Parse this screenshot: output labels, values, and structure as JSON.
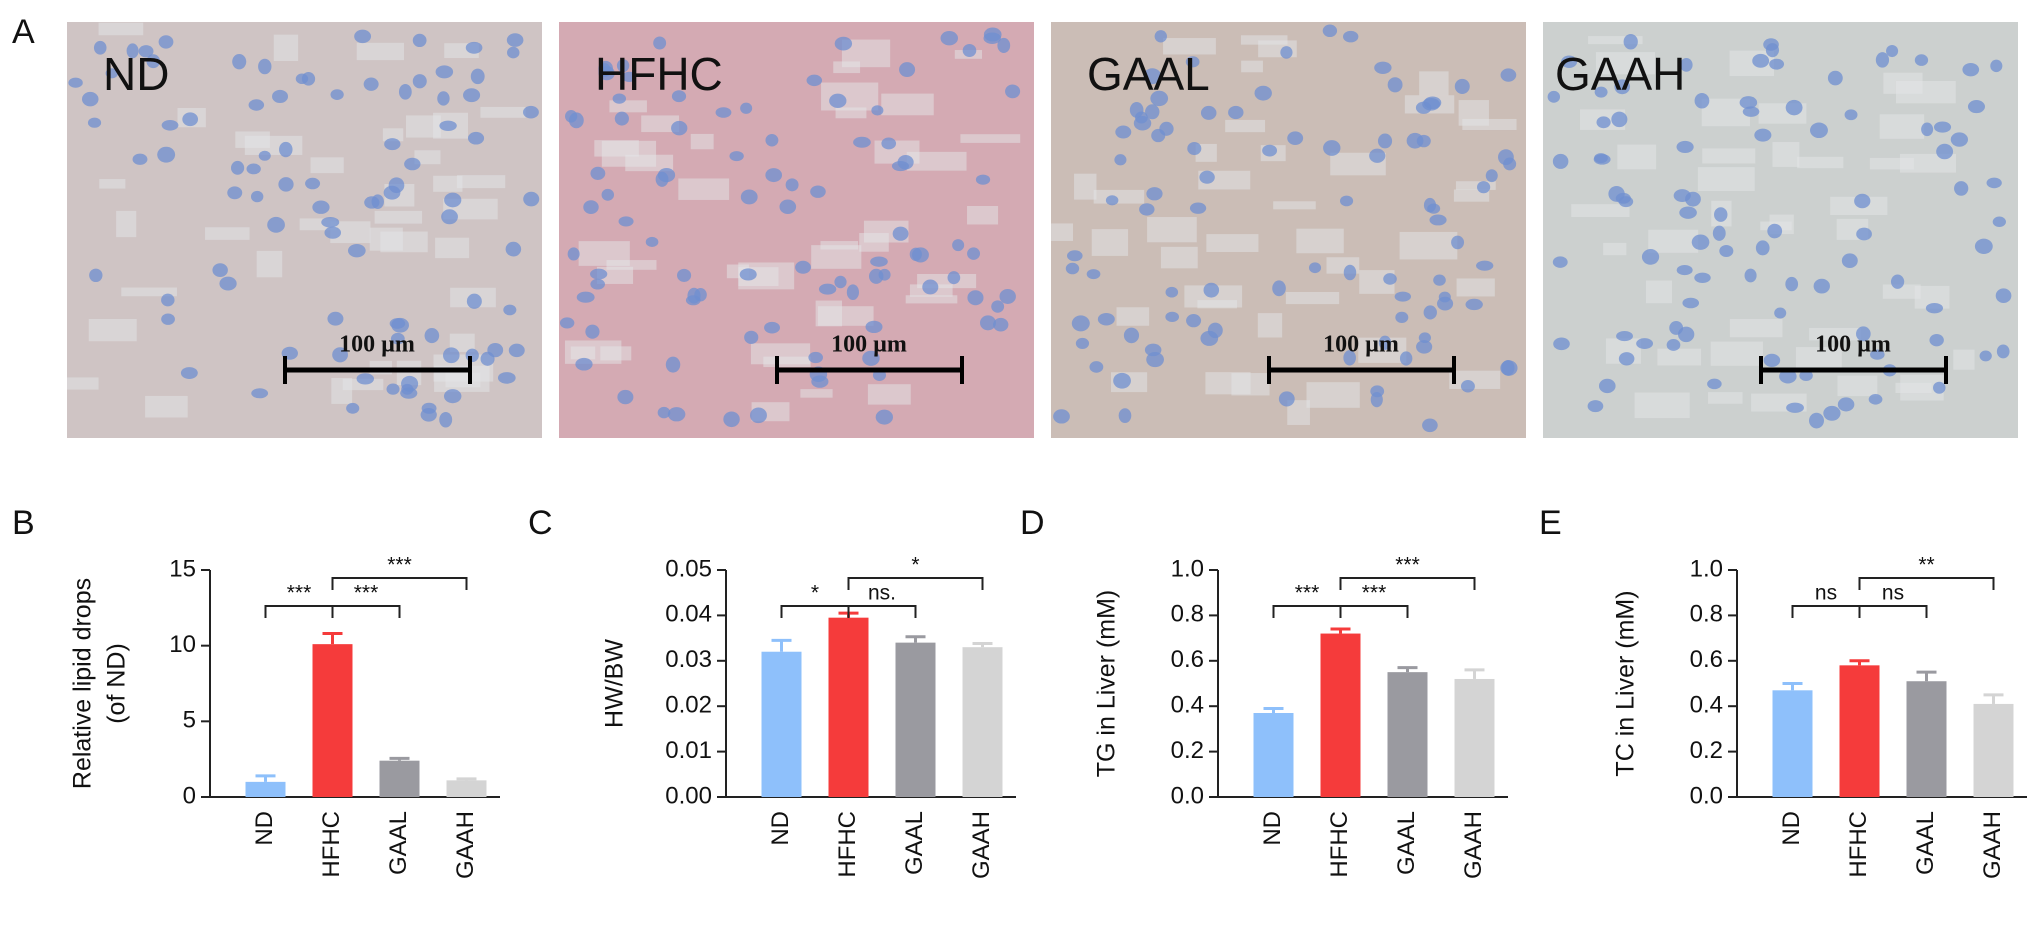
{
  "panel_a": {
    "label": "A",
    "images": [
      {
        "label": "ND",
        "scale_bar": "100 µm"
      },
      {
        "label": "HFHC",
        "scale_bar": "100 µm"
      },
      {
        "label": "GAAL",
        "scale_bar": "100 µm"
      },
      {
        "label": "GAAH",
        "scale_bar": "100 µm"
      }
    ]
  },
  "chart_data": [
    {
      "type": "bar",
      "panel": "B",
      "ylabel": [
        "Relative lipid drops",
        "(of ND)"
      ],
      "categories": [
        "ND",
        "HFHC",
        "GAAL",
        "GAAH"
      ],
      "values": [
        1.0,
        10.1,
        2.4,
        1.1
      ],
      "errors": [
        0.4,
        0.7,
        0.15,
        0.1
      ],
      "colors": [
        "#8ec0fb",
        "#f53b3b",
        "#9a9aa0",
        "#d4d4d4"
      ],
      "ylim": [
        0,
        15
      ],
      "yticks": [
        0,
        5,
        10,
        15
      ],
      "annotations": [
        {
          "pair": [
            0,
            1
          ],
          "label": "***"
        },
        {
          "pair": [
            1,
            2
          ],
          "label": "***"
        },
        {
          "pair": [
            1,
            3
          ],
          "label": "***"
        }
      ]
    },
    {
      "type": "bar",
      "panel": "C",
      "ylabel": [
        "HW/BW"
      ],
      "categories": [
        "ND",
        "HFHC",
        "GAAL",
        "GAAH"
      ],
      "values": [
        0.032,
        0.0395,
        0.034,
        0.033
      ],
      "errors": [
        0.0025,
        0.001,
        0.0013,
        0.0008
      ],
      "colors": [
        "#8ec0fb",
        "#f53b3b",
        "#9a9aa0",
        "#d4d4d4"
      ],
      "ylim": [
        0,
        0.05
      ],
      "yticks": [
        {
          "value": 0,
          "label": "0.00"
        },
        {
          "value": 0.01,
          "label": "0.01"
        },
        {
          "value": 0.02,
          "label": "0.02"
        },
        {
          "value": 0.03,
          "label": "0.03"
        },
        {
          "value": 0.04,
          "label": "0.04"
        },
        {
          "value": 0.05,
          "label": "0.05"
        }
      ],
      "annotations": [
        {
          "pair": [
            0,
            1
          ],
          "label": "*"
        },
        {
          "pair": [
            1,
            2
          ],
          "label": "ns."
        },
        {
          "pair": [
            1,
            3
          ],
          "label": "*"
        }
      ]
    },
    {
      "type": "bar",
      "panel": "D",
      "ylabel": [
        "TG in Liver (mM)"
      ],
      "categories": [
        "ND",
        "HFHC",
        "GAAL",
        "GAAH"
      ],
      "values": [
        0.37,
        0.72,
        0.55,
        0.52
      ],
      "errors": [
        0.02,
        0.02,
        0.02,
        0.04
      ],
      "colors": [
        "#8ec0fb",
        "#f53b3b",
        "#9a9aa0",
        "#d4d4d4"
      ],
      "ylim": [
        0,
        1
      ],
      "yticks": [
        {
          "value": 0,
          "label": "0.0"
        },
        0.2,
        0.4,
        0.6,
        0.8,
        {
          "value": 1,
          "label": "1.0"
        }
      ],
      "annotations": [
        {
          "pair": [
            0,
            1
          ],
          "label": "***"
        },
        {
          "pair": [
            1,
            2
          ],
          "label": "***"
        },
        {
          "pair": [
            1,
            3
          ],
          "label": "***"
        }
      ]
    },
    {
      "type": "bar",
      "panel": "E",
      "ylabel": [
        "TC in Liver (mM)"
      ],
      "categories": [
        "ND",
        "HFHC",
        "GAAL",
        "GAAH"
      ],
      "values": [
        0.47,
        0.58,
        0.51,
        0.41
      ],
      "errors": [
        0.03,
        0.02,
        0.04,
        0.04
      ],
      "colors": [
        "#8ec0fb",
        "#f53b3b",
        "#9a9aa0",
        "#d4d4d4"
      ],
      "ylim": [
        0,
        1
      ],
      "yticks": [
        {
          "value": 0,
          "label": "0.0"
        },
        0.2,
        0.4,
        0.6,
        0.8,
        {
          "value": 1,
          "label": "1.0"
        }
      ],
      "annotations": [
        {
          "pair": [
            0,
            1
          ],
          "label": "ns"
        },
        {
          "pair": [
            1,
            2
          ],
          "label": "ns"
        },
        {
          "pair": [
            1,
            3
          ],
          "label": "**"
        }
      ]
    }
  ]
}
